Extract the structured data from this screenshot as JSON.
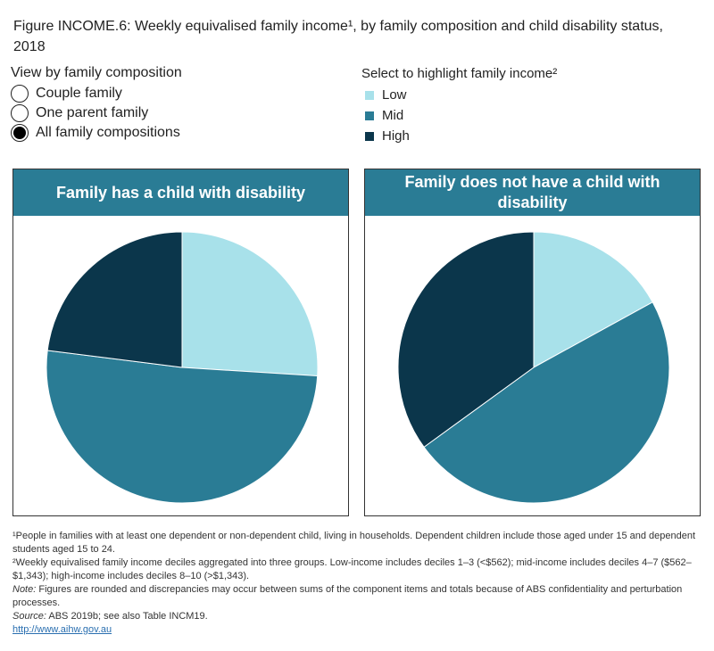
{
  "title": "Figure INCOME.6: Weekly equivalised family income¹, by family composition and child disability status, 2018",
  "view_control": {
    "label": "View by family composition",
    "options": [
      {
        "label": "Couple family",
        "selected": false
      },
      {
        "label": "One parent family",
        "selected": false
      },
      {
        "label": "All family compositions",
        "selected": true
      }
    ]
  },
  "legend": {
    "label": "Select to highlight family income²",
    "items": [
      {
        "label": "Low",
        "color": "#a8e1ea"
      },
      {
        "label": "Mid",
        "color": "#2a7c95"
      },
      {
        "label": "High",
        "color": "#0b364b"
      }
    ]
  },
  "chart_data": [
    {
      "type": "pie",
      "title": "Family has a child with disability",
      "categories": [
        "Low",
        "Mid",
        "High"
      ],
      "values": [
        26,
        51,
        23
      ],
      "unit": "%",
      "colors": [
        "#a8e1ea",
        "#2a7c95",
        "#0b364b"
      ]
    },
    {
      "type": "pie",
      "title": "Family does not have a child with disability",
      "categories": [
        "Low",
        "Mid",
        "High"
      ],
      "values": [
        17,
        48,
        35
      ],
      "unit": "%",
      "colors": [
        "#a8e1ea",
        "#2a7c95",
        "#0b364b"
      ]
    }
  ],
  "notes": {
    "n1": "¹People in families with at least one dependent or non-dependent child, living in households. Dependent children include those aged under 15 and dependent students aged 15 to 24.",
    "n2": "²Weekly equivalised family income deciles aggregated into three groups. Low-income includes deciles 1–3 (<$562); mid-income includes deciles 4–7 ($562–$1,343); high-income includes deciles 8–10 (>$1,343).",
    "note_label": "Note:",
    "note": " Figures are rounded and discrepancies may occur between sums of the component items and totals because of ABS confidentiality and perturbation processes.",
    "source_label": "Source:",
    "source": " ABS 2019b; see also Table INCM19.",
    "link": "http://www.aihw.gov.au"
  }
}
